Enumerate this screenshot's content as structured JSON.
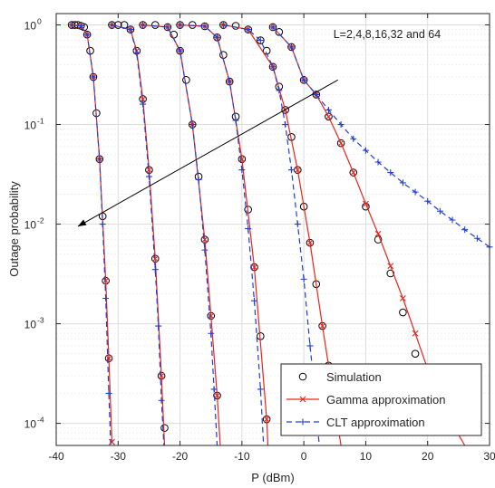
{
  "chart_data": {
    "type": "line",
    "xlabel": "P (dBm)",
    "ylabel": "Outage probability",
    "xlim": [
      -40,
      30
    ],
    "ylim": [
      6e-05,
      1.3
    ],
    "y_scale": "log",
    "grid": true,
    "x_ticks": [
      -40,
      -30,
      -20,
      -10,
      0,
      10,
      20,
      30
    ],
    "x_tick_labels": [
      "-40",
      "-30",
      "-20",
      "-10",
      "0",
      "10",
      "20",
      "30"
    ],
    "y_ticks": [
      0.0001,
      0.001,
      0.01,
      0.1,
      1
    ],
    "y_tick_labels": [
      {
        "base": "10",
        "exp": "-4"
      },
      {
        "base": "10",
        "exp": "-3"
      },
      {
        "base": "10",
        "exp": "-2"
      },
      {
        "base": "10",
        "exp": "-1"
      },
      {
        "base": "10",
        "exp": "0"
      }
    ],
    "legend_position": "bottom-right",
    "annotation": {
      "text": "L=2,4,8,16,32 and 64",
      "arrow_from": [
        5.5,
        0.28
      ],
      "arrow_to": [
        -36.5,
        0.0095
      ]
    },
    "series": [
      {
        "name": "Simulation",
        "style": "markers",
        "color": "#000000",
        "marker": "circle",
        "curves": [
          [
            [
              -37.5,
              1
            ],
            [
              -37,
              1
            ],
            [
              -36.5,
              1
            ],
            [
              -36,
              0.98
            ],
            [
              -35.5,
              0.95
            ],
            [
              -35,
              0.8
            ],
            [
              -34.5,
              0.55
            ],
            [
              -34,
              0.3
            ],
            [
              -33.5,
              0.13
            ],
            [
              -33,
              0.045
            ],
            [
              -32.5,
              0.012
            ],
            [
              -32,
              0.0027
            ],
            [
              -31.5,
              0.00045
            ]
          ],
          [
            [
              -31,
              1
            ],
            [
              -30,
              1
            ],
            [
              -29,
              1
            ],
            [
              -28,
              0.9
            ],
            [
              -27,
              0.55
            ],
            [
              -26,
              0.18
            ],
            [
              -25,
              0.035
            ],
            [
              -24,
              0.0045
            ],
            [
              -23,
              0.0003
            ],
            [
              -22.5,
              9e-05
            ]
          ],
          [
            [
              -26,
              1
            ],
            [
              -24,
              1
            ],
            [
              -22,
              0.95
            ],
            [
              -21,
              0.8
            ],
            [
              -20,
              0.55
            ],
            [
              -19,
              0.28
            ],
            [
              -18,
              0.1
            ],
            [
              -17,
              0.03
            ],
            [
              -16,
              0.007
            ],
            [
              -15,
              0.0012
            ],
            [
              -14,
              0.00019
            ]
          ],
          [
            [
              -20,
              1
            ],
            [
              -18,
              1
            ],
            [
              -16,
              0.97
            ],
            [
              -14,
              0.75
            ],
            [
              -13,
              0.5
            ],
            [
              -12,
              0.27
            ],
            [
              -11,
              0.12
            ],
            [
              -10,
              0.045
            ],
            [
              -9,
              0.014
            ],
            [
              -8,
              0.0037
            ],
            [
              -7,
              0.00075
            ],
            [
              -6,
              0.00011
            ]
          ],
          [
            [
              -13,
              1
            ],
            [
              -11,
              0.98
            ],
            [
              -9,
              0.9
            ],
            [
              -7,
              0.7
            ],
            [
              -6,
              0.55
            ],
            [
              -5,
              0.38
            ],
            [
              -4,
              0.24
            ],
            [
              -3,
              0.14
            ],
            [
              -2,
              0.075
            ],
            [
              -1,
              0.035
            ],
            [
              0,
              0.015
            ],
            [
              1,
              0.0065
            ],
            [
              2,
              0.0025
            ],
            [
              3,
              0.00095
            ],
            [
              4,
              0.00038
            ],
            [
              5,
              0.00015
            ]
          ],
          [
            [
              -5,
              0.95
            ],
            [
              -4,
              0.85
            ],
            [
              -2,
              0.6
            ],
            [
              0,
              0.28
            ],
            [
              2,
              0.2
            ],
            [
              4,
              0.12
            ],
            [
              6,
              0.065
            ],
            [
              8,
              0.033
            ],
            [
              10,
              0.015
            ],
            [
              12,
              0.007
            ],
            [
              14,
              0.0032
            ],
            [
              16,
              0.0013
            ],
            [
              18,
              0.0005
            ]
          ]
        ]
      },
      {
        "name": "Gamma approximation",
        "style": "solid line with x markers",
        "color": "#e8251d",
        "marker": "x",
        "curves": [
          [
            [
              -37.5,
              1
            ],
            [
              -36,
              0.98
            ],
            [
              -35,
              0.8
            ],
            [
              -34,
              0.3
            ],
            [
              -33,
              0.045
            ],
            [
              -32,
              0.0027
            ],
            [
              -31.5,
              0.00045
            ],
            [
              -31,
              6.5e-05
            ]
          ],
          [
            [
              -31,
              1
            ],
            [
              -28,
              0.9
            ],
            [
              -27,
              0.55
            ],
            [
              -26,
              0.18
            ],
            [
              -25,
              0.035
            ],
            [
              -24,
              0.0045
            ],
            [
              -23,
              0.0003
            ],
            [
              -22.5,
              6e-05
            ]
          ],
          [
            [
              -26,
              1
            ],
            [
              -22,
              0.95
            ],
            [
              -20,
              0.55
            ],
            [
              -18,
              0.1
            ],
            [
              -16,
              0.007
            ],
            [
              -15,
              0.0012
            ],
            [
              -14,
              0.00019
            ],
            [
              -13.5,
              6e-05
            ]
          ],
          [
            [
              -20,
              1
            ],
            [
              -16,
              0.97
            ],
            [
              -14,
              0.75
            ],
            [
              -12,
              0.27
            ],
            [
              -10,
              0.045
            ],
            [
              -8,
              0.0037
            ],
            [
              -6,
              0.00011
            ],
            [
              -5.8,
              6e-05
            ]
          ],
          [
            [
              -13,
              1
            ],
            [
              -9,
              0.9
            ],
            [
              -5,
              0.38
            ],
            [
              -3,
              0.14
            ],
            [
              -1,
              0.035
            ],
            [
              1,
              0.0065
            ],
            [
              3,
              0.00095
            ],
            [
              5,
              0.00015
            ],
            [
              6,
              6e-05
            ]
          ],
          [
            [
              -5,
              0.95
            ],
            [
              -2,
              0.6
            ],
            [
              0,
              0.28
            ],
            [
              2,
              0.2
            ],
            [
              4,
              0.12
            ],
            [
              6,
              0.065
            ],
            [
              8,
              0.033
            ],
            [
              10,
              0.016
            ],
            [
              12,
              0.008
            ],
            [
              14,
              0.0038
            ],
            [
              16,
              0.0018
            ],
            [
              18,
              0.0008
            ],
            [
              20,
              0.00035
            ],
            [
              22,
              0.00016
            ],
            [
              26,
              6e-05
            ]
          ]
        ]
      },
      {
        "name": "CLT approximation",
        "style": "dashed line with + markers",
        "color": "#1f3fd6",
        "marker": "plus",
        "curves": [
          [
            [
              -37.5,
              1
            ],
            [
              -36,
              0.98
            ],
            [
              -35,
              0.8
            ],
            [
              -34,
              0.3
            ],
            [
              -33,
              0.045
            ],
            [
              -32.5,
              0.01
            ],
            [
              -32,
              0.0018
            ],
            [
              -31.5,
              0.0002
            ],
            [
              -31.2,
              6e-05
            ]
          ],
          [
            [
              -31,
              1
            ],
            [
              -28,
              0.9
            ],
            [
              -27,
              0.52
            ],
            [
              -26,
              0.16
            ],
            [
              -25,
              0.03
            ],
            [
              -24,
              0.0035
            ],
            [
              -23.5,
              0.00095
            ],
            [
              -23,
              0.00017
            ],
            [
              -22.6,
              6e-05
            ]
          ],
          [
            [
              -26,
              1
            ],
            [
              -22,
              0.95
            ],
            [
              -20,
              0.55
            ],
            [
              -18,
              0.1
            ],
            [
              -17,
              0.028
            ],
            [
              -16,
              0.0055
            ],
            [
              -15,
              0.0008
            ],
            [
              -14.5,
              0.00022
            ],
            [
              -14,
              6e-05
            ]
          ],
          [
            [
              -20,
              1
            ],
            [
              -16,
              0.97
            ],
            [
              -14,
              0.75
            ],
            [
              -12,
              0.27
            ],
            [
              -11,
              0.11
            ],
            [
              -10,
              0.035
            ],
            [
              -9,
              0.009
            ],
            [
              -8,
              0.0017
            ],
            [
              -7,
              0.00022
            ],
            [
              -6.5,
              6e-05
            ]
          ],
          [
            [
              -13,
              1
            ],
            [
              -9,
              0.9
            ],
            [
              -7,
              0.7
            ],
            [
              -5,
              0.38
            ],
            [
              -4,
              0.22
            ],
            [
              -3,
              0.1
            ],
            [
              -2,
              0.035
            ],
            [
              -1,
              0.01
            ],
            [
              0,
              0.0028
            ],
            [
              1,
              0.0006
            ],
            [
              1.5,
              0.0003
            ],
            [
              2,
              0.00013
            ],
            [
              2.5,
              6e-05
            ]
          ],
          [
            [
              -5,
              0.95
            ],
            [
              -2,
              0.6
            ],
            [
              0,
              0.28
            ],
            [
              2,
              0.2
            ],
            [
              4,
              0.14
            ],
            [
              6,
              0.1
            ],
            [
              8,
              0.072
            ],
            [
              10,
              0.055
            ],
            [
              12,
              0.042
            ],
            [
              14,
              0.033
            ],
            [
              16,
              0.026
            ],
            [
              18,
              0.021
            ],
            [
              20,
              0.017
            ],
            [
              22,
              0.0135
            ],
            [
              24,
              0.011
            ],
            [
              26,
              0.0088
            ],
            [
              28,
              0.0072
            ],
            [
              30,
              0.0059
            ]
          ]
        ]
      }
    ]
  }
}
